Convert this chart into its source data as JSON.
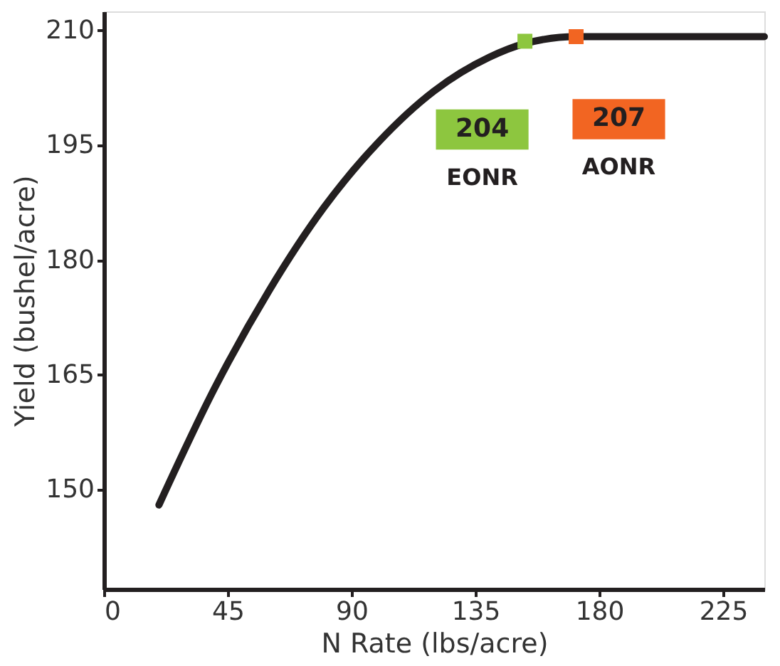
{
  "chart_data": {
    "type": "line",
    "xlabel": "N Rate (lbs/acre)",
    "ylabel": "Yield (bushel/acre)",
    "xlim": [
      0,
      240
    ],
    "xticks": [
      0,
      45,
      90,
      135,
      180,
      225
    ],
    "ylim": [
      137,
      212.5
    ],
    "yticks": [
      150,
      165,
      180,
      195,
      210
    ],
    "grid": false,
    "legend": "top right",
    "series": [
      {
        "line_style": "solid",
        "color": "#231f20",
        "x": [
          20,
          40,
          60,
          80,
          100,
          120,
          140,
          153,
          171.6,
          200,
          220,
          240
        ],
        "values": [
          148,
          163.1,
          176,
          186.9,
          195.5,
          202.1,
          206.5,
          208.3,
          209.2,
          209.2,
          209.2,
          209.2
        ]
      },
      {
        "type": "scatter",
        "name": "EONR",
        "color": "#8dc63f",
        "marker": "square",
        "x": [
          153
        ],
        "values": [
          208.6
        ]
      },
      {
        "type": "scatter",
        "name": "AONR",
        "color": "#f26522",
        "marker": "square",
        "x": [
          171.6
        ],
        "values": [
          209.2
        ]
      }
    ],
    "annotations": [
      {
        "text": "204",
        "x": 153,
        "y": 208.6
      },
      {
        "text": "207",
        "x": 171.6,
        "y": 209.2
      }
    ]
  }
}
